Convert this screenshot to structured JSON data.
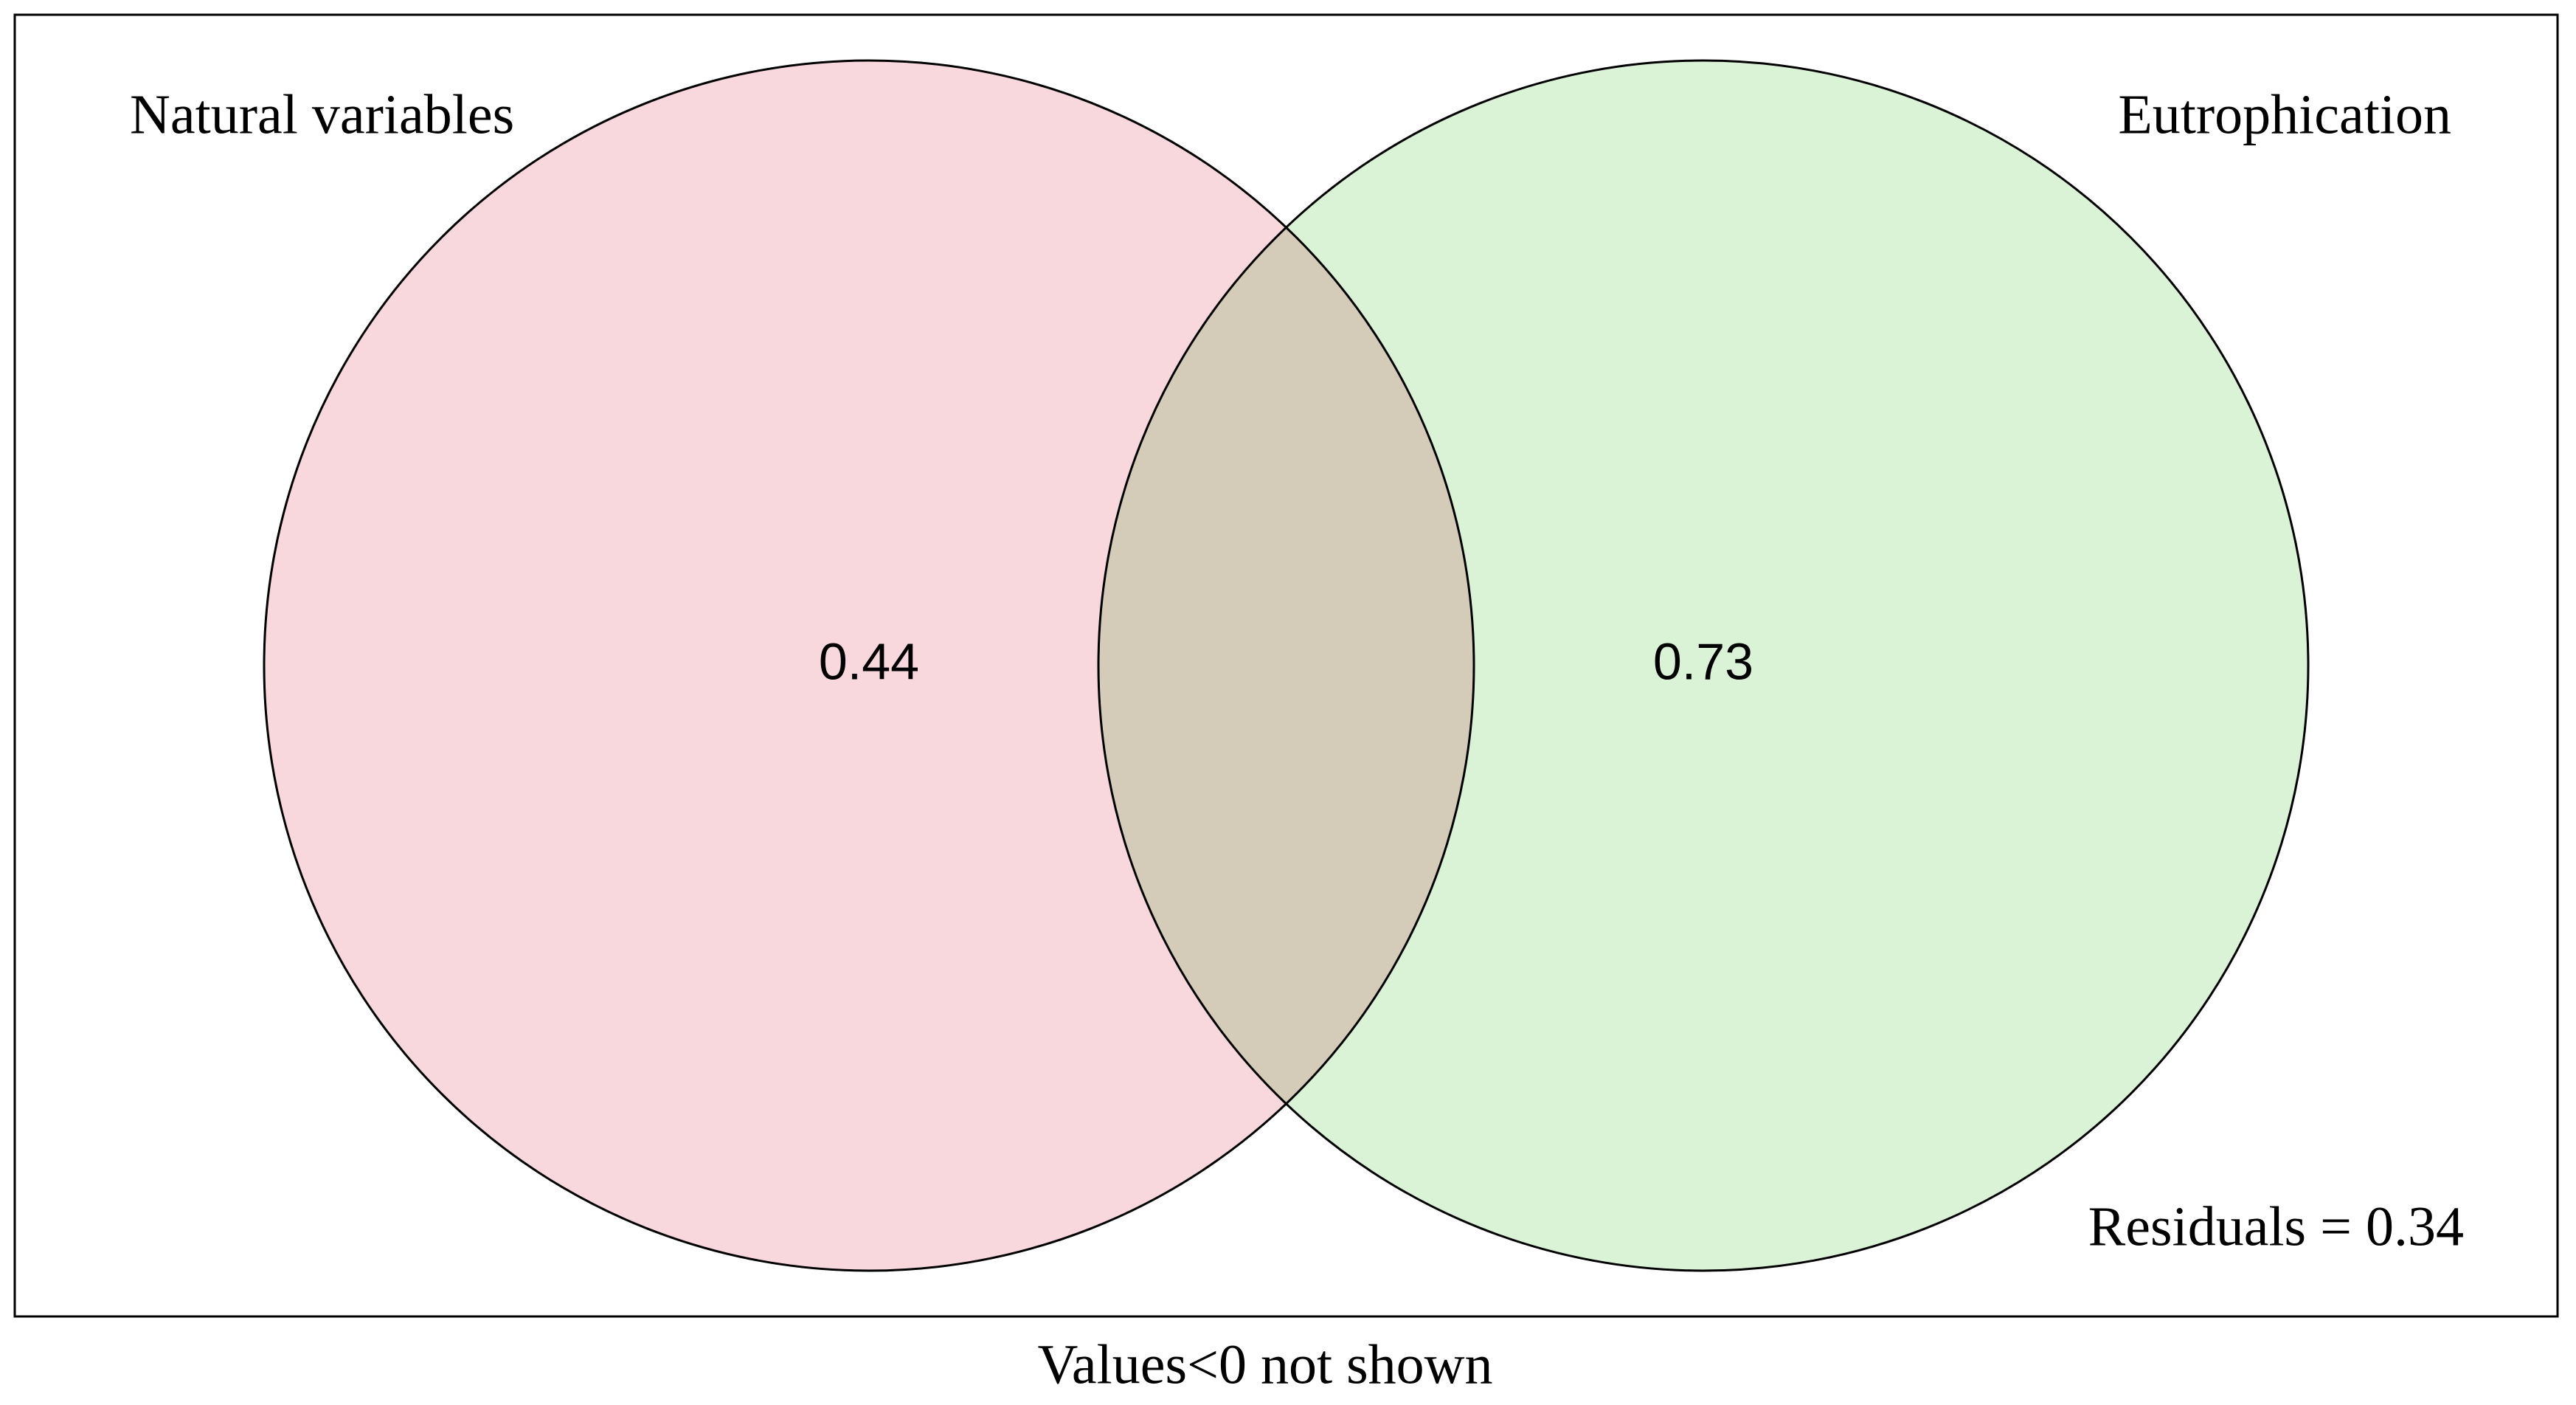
{
  "chart_data": {
    "type": "venn",
    "sets": [
      {
        "name": "Natural variables",
        "color": "#f8d7dd",
        "value": 0.44
      },
      {
        "name": "Eutrophication",
        "color": "#daf2d5",
        "value": 0.73
      }
    ],
    "residuals_label": "Residuals = 0.34",
    "note": "Values<0 not shown"
  }
}
